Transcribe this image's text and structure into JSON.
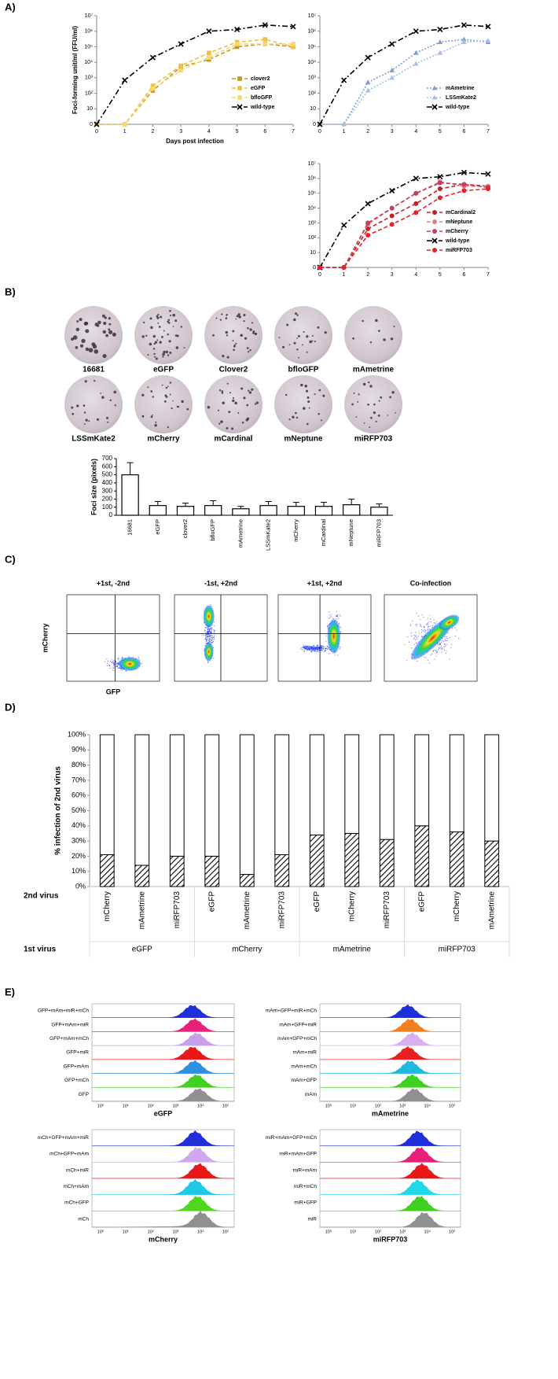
{
  "panel_labels": [
    "A)",
    "B)",
    "C)",
    "D)",
    "E)"
  ],
  "chart_data": [
    {
      "type": "line",
      "ylabel": "Foci-forming unit/ml (FFU/ml)",
      "xlabel": "Days post infection",
      "log_y": true,
      "legend": "lower right",
      "x": [
        0,
        1,
        2,
        3,
        4,
        5,
        6,
        7
      ],
      "xlim": [
        0,
        7
      ],
      "xticks": [
        0,
        1,
        2,
        3,
        4,
        5,
        6,
        7
      ],
      "ylim": [
        0,
        10000000
      ],
      "yticks": [
        0,
        10,
        {
          "value": 100,
          "label": "10²"
        },
        {
          "value": 1000,
          "label": "10³"
        },
        {
          "value": 10000,
          "label": "10⁴"
        },
        {
          "value": 100000,
          "label": "10⁵"
        },
        {
          "value": 1000000,
          "label": "10⁶"
        },
        {
          "value": 10000000,
          "label": "10⁷"
        }
      ],
      "series": [
        {
          "name": "clover2",
          "color": "#c8961e",
          "marker": "square",
          "line_style": "dashed",
          "values": [
            0,
            0,
            150,
            5000,
            15000,
            100000,
            150000,
            100000
          ]
        },
        {
          "name": "eGFP",
          "color": "#f0c040",
          "marker": "square",
          "line_style": "dashed",
          "values": [
            0,
            0,
            300,
            6000,
            40000,
            200000,
            300000,
            100000
          ]
        },
        {
          "name": "bfloGFP",
          "color": "#f7d870",
          "marker": "square",
          "line_style": "dashed",
          "values": [
            0,
            0,
            200,
            3000,
            20000,
            150000,
            150000,
            150000
          ]
        },
        {
          "name": "wild-type",
          "color": "#000000",
          "marker": "x",
          "line_style": "dash-dot",
          "values": [
            0,
            700,
            20000,
            150000,
            1000000,
            1300000,
            2500000,
            2000000
          ]
        }
      ]
    },
    {
      "type": "line",
      "log_y": true,
      "legend": "lower right",
      "x": [
        0,
        1,
        2,
        3,
        4,
        5,
        6,
        7
      ],
      "xlim": [
        0,
        7
      ],
      "xticks": [
        0,
        1,
        2,
        3,
        4,
        5,
        6,
        7
      ],
      "ylim": [
        0,
        10000000
      ],
      "yticks": [
        0,
        10,
        {
          "value": 100,
          "label": "10²"
        },
        {
          "value": 1000,
          "label": "10³"
        },
        {
          "value": 10000,
          "label": "10⁴"
        },
        {
          "value": 100000,
          "label": "10⁵"
        },
        {
          "value": 1000000,
          "label": "10⁶"
        },
        {
          "value": 10000000,
          "label": "10⁷"
        }
      ],
      "series": [
        {
          "name": "mAmetrine",
          "color": "#7f9fd4",
          "marker": "triangle",
          "line_style": "dotted",
          "values": [
            0,
            0,
            500,
            3000,
            40000,
            200000,
            300000,
            200000
          ]
        },
        {
          "name": "LSSmKate2",
          "color": "#a9c0e6",
          "marker": "triangle",
          "line_style": "dotted",
          "values": [
            0,
            0,
            150,
            1000,
            8000,
            40000,
            200000,
            250000
          ]
        },
        {
          "name": "wild-type",
          "color": "#000000",
          "marker": "x",
          "line_style": "dash-dot",
          "values": [
            0,
            700,
            20000,
            150000,
            1000000,
            1300000,
            2500000,
            2000000
          ]
        }
      ]
    },
    {
      "type": "line",
      "log_y": true,
      "legend": "lower right",
      "x": [
        0,
        1,
        2,
        3,
        4,
        5,
        6,
        7
      ],
      "xlim": [
        0,
        7
      ],
      "xticks": [
        0,
        1,
        2,
        3,
        4,
        5,
        6,
        7
      ],
      "ylim": [
        0,
        10000000
      ],
      "yticks": [
        0,
        10,
        {
          "value": 100,
          "label": "10²"
        },
        {
          "value": 1000,
          "label": "10³"
        },
        {
          "value": 10000,
          "label": "10⁴"
        },
        {
          "value": 100000,
          "label": "10⁵"
        },
        {
          "value": 1000000,
          "label": "10⁶"
        },
        {
          "value": 10000000,
          "label": "10⁷"
        }
      ],
      "series": [
        {
          "name": "mCardinal2",
          "color": "#c0242b",
          "marker": "circle",
          "line_style": "dashed",
          "values": [
            0,
            0,
            400,
            3000,
            20000,
            200000,
            400000,
            300000
          ]
        },
        {
          "name": "mNeptune",
          "color": "#e08080",
          "marker": "circle",
          "line_style": "dashed",
          "values": [
            0,
            0,
            800,
            10000,
            100000,
            600000,
            300000,
            300000
          ]
        },
        {
          "name": "mCherry",
          "color": "#c04060",
          "marker": "circle",
          "line_style": "dashed",
          "values": [
            0,
            0,
            1000,
            10000,
            100000,
            500000,
            400000,
            250000
          ]
        },
        {
          "name": "wild-type",
          "color": "#000000",
          "marker": "x",
          "line_style": "dash-dot",
          "values": [
            0,
            700,
            20000,
            150000,
            1000000,
            1300000,
            2500000,
            2000000
          ]
        },
        {
          "name": "miRFP703",
          "color": "#e8202a",
          "marker": "circle",
          "line_style": "dashed",
          "values": [
            0,
            0,
            150,
            800,
            5000,
            50000,
            150000,
            200000
          ]
        }
      ]
    },
    {
      "type": "bar",
      "ylabel": "Foci size (pixels)",
      "color": "#ffffff",
      "edge_color": "#000000",
      "categories": [
        "16681",
        "eGFP",
        "clover2",
        "bfloGFP",
        "mAmetrine",
        "LSSmKate2",
        "mCherry",
        "mCardinal",
        "mNeptune",
        "miRFP703"
      ],
      "values": [
        500,
        120,
        110,
        120,
        80,
        120,
        110,
        110,
        130,
        100
      ],
      "errors": [
        150,
        50,
        40,
        60,
        30,
        50,
        50,
        50,
        70,
        40
      ],
      "ylim": [
        0,
        700
      ],
      "yticks": [
        0,
        100,
        200,
        300,
        400,
        500,
        600,
        700
      ]
    },
    {
      "type": "stacked_bar",
      "ylabel": "% infection of 2nd virus",
      "category_title": "2nd virus",
      "group_title": "1st virus",
      "categories": [
        "mCherry",
        "mAmetrine",
        "miRFP703",
        "eGFP",
        "mAmetrine",
        "miRFP703",
        "eGFP",
        "mCherry",
        "miRFP703",
        "eGFP",
        "mCherry",
        "mAmetrine"
      ],
      "groups": [
        "eGFP",
        "mCherry",
        "mAmetrine",
        "miRFP703"
      ],
      "series": [
        {
          "fill": "hatch",
          "values": [
            21,
            14,
            20,
            20,
            8,
            21,
            34,
            35,
            31,
            40,
            36,
            30
          ]
        },
        {
          "fill": "#ffffff",
          "values": [
            79,
            86,
            80,
            80,
            92,
            79,
            66,
            65,
            69,
            60,
            64,
            70
          ]
        }
      ],
      "ylim": [
        0,
        100
      ],
      "yticks": [
        {
          "value": 0,
          "label": "0%"
        },
        {
          "value": 10,
          "label": "10%"
        },
        {
          "value": 20,
          "label": "20%"
        },
        {
          "value": 30,
          "label": "30%"
        },
        {
          "value": 40,
          "label": "40%"
        },
        {
          "value": 50,
          "label": "50%"
        },
        {
          "value": 60,
          "label": "60%"
        },
        {
          "value": 70,
          "label": "70%"
        },
        {
          "value": 80,
          "label": "80%"
        },
        {
          "value": 90,
          "label": "90%"
        },
        {
          "value": 100,
          "label": "100%"
        }
      ]
    }
  ],
  "plaques": [
    "16681",
    "eGFP",
    "Clover2",
    "bfloGFP",
    "mAmetrine",
    "LSSmKate2",
    "mCherry",
    "mCardinal",
    "mNeptune",
    "miRFP703"
  ],
  "flow": {
    "titles": [
      "+1st, -2nd",
      "-1st, +2nd",
      "+1st, +2nd",
      "Co-infection"
    ],
    "y_label": "mCherry",
    "x_label": "GFP"
  },
  "histogram_ticks": [
    "10⁰",
    "10¹",
    "10²",
    "10³",
    "10⁴",
    "10⁵"
  ],
  "histograms": [
    {
      "x_label": "eGFP",
      "rows": [
        {
          "label": "GFP+mAm+miR+mCh",
          "color": "#2030d8"
        },
        {
          "label": "GFP+mAm+miR",
          "color": "#e8207c"
        },
        {
          "label": "GFP+mAm+mCh",
          "color": "#c8a0e8"
        },
        {
          "label": "GFP+miR",
          "color": "#e81818"
        },
        {
          "label": "GFP+mAm",
          "color": "#3090e0"
        },
        {
          "label": "GFP+mCh",
          "color": "#40d020"
        },
        {
          "label": "GFP",
          "color": "#909090"
        }
      ]
    },
    {
      "x_label": "mAmetrine",
      "rows": [
        {
          "label": "mAm+GFP+miR+mCh",
          "color": "#2030d8"
        },
        {
          "label": "mAm+GFP+miR",
          "color": "#f08020"
        },
        {
          "label": "mAm+GFP+mCh",
          "color": "#d8b0f0"
        },
        {
          "label": "mAm+miR",
          "color": "#e82020"
        },
        {
          "label": "mAm+mCh",
          "color": "#20b8e0"
        },
        {
          "label": "mAm+GFP",
          "color": "#40d020"
        },
        {
          "label": "mAm",
          "color": "#909090"
        }
      ]
    },
    {
      "x_label": "mCherry",
      "rows": [
        {
          "label": "mCh+GFP+mAm+miR",
          "color": "#2030d8"
        },
        {
          "label": "mCh+GFP+mAm",
          "color": "#d0a8f0"
        },
        {
          "label": "mCh+miR",
          "color": "#e81818"
        },
        {
          "label": "mCh+mAm",
          "color": "#20c8e8"
        },
        {
          "label": "mCh+GFP",
          "color": "#50d820"
        },
        {
          "label": "mCh",
          "color": "#909090"
        }
      ]
    },
    {
      "x_label": "miRFP703",
      "rows": [
        {
          "label": "miR+mAm+GFP+mCh",
          "color": "#2030d8"
        },
        {
          "label": "miR+mAm+GFP",
          "color": "#e8207c"
        },
        {
          "label": "miR+mAm",
          "color": "#e81818"
        },
        {
          "label": "miR+mCh",
          "color": "#20d8e8"
        },
        {
          "label": "miR+GFP",
          "color": "#40d020"
        },
        {
          "label": "miR",
          "color": "#909090"
        }
      ]
    }
  ]
}
